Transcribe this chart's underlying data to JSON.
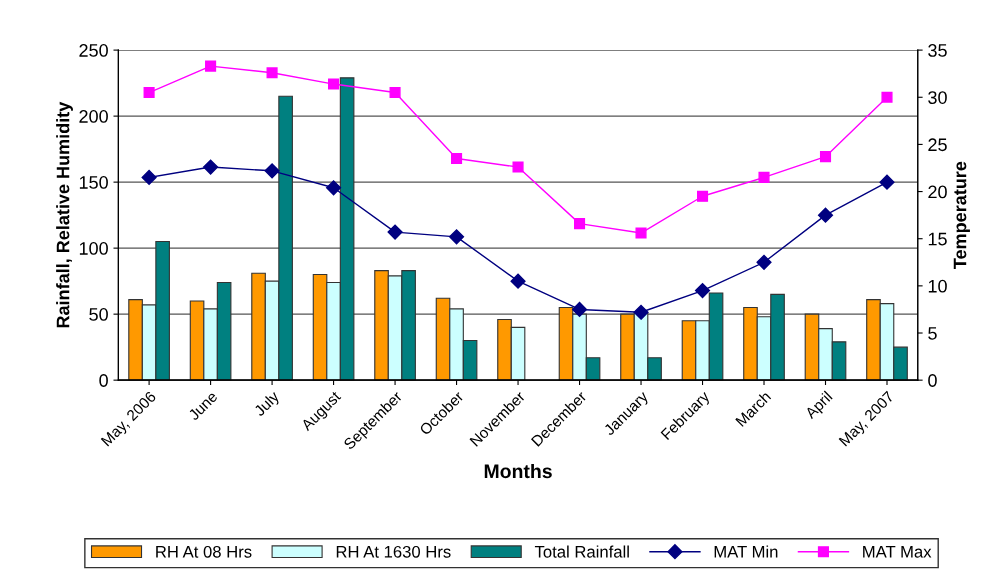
{
  "chart_data": {
    "type": "bar",
    "xlabel": "Months",
    "ylabel": "Rainfall, Relative Humidity",
    "y2label": "Temperature",
    "categories": [
      "May, 2006",
      "June",
      "July",
      "August",
      "September",
      "October",
      "November",
      "December",
      "January",
      "February",
      "March",
      "April",
      "May, 2007"
    ],
    "series": [
      {
        "name": "RH At 08 Hrs",
        "color": "#ff9900",
        "values": [
          61,
          60,
          81,
          80,
          83,
          62,
          46,
          55,
          50,
          45,
          55,
          50,
          61
        ]
      },
      {
        "name": "RH At 1630 Hrs",
        "color": "#ccffff",
        "values": [
          57,
          54,
          75,
          74,
          79,
          54,
          40,
          50,
          51,
          45,
          48,
          39,
          58
        ]
      },
      {
        "name": "Total Rainfall",
        "color": "#008080",
        "values": [
          105,
          74,
          215,
          229,
          83,
          30,
          null,
          17,
          17,
          66,
          65,
          29,
          25
        ]
      },
      {
        "name": "MAT Min",
        "type": "line",
        "axis": "y2",
        "marker": "diamond",
        "color": "#000080",
        "values": [
          21.5,
          22.6,
          22.2,
          20.4,
          15.7,
          15.2,
          10.5,
          7.5,
          7.2,
          9.5,
          12.5,
          17.5,
          21
        ]
      },
      {
        "name": "MAT Max",
        "type": "line",
        "axis": "y2",
        "marker": "square",
        "color": "#ff00ff",
        "values": [
          30.5,
          33.3,
          32.6,
          31.4,
          30.5,
          23.5,
          22.6,
          16.6,
          15.6,
          19.5,
          21.5,
          23.7,
          30
        ]
      }
    ],
    "ylim": [
      0,
      250
    ],
    "yticks": [
      0,
      50,
      100,
      150,
      200,
      250
    ],
    "y2lim": [
      0,
      35
    ],
    "y2ticks": [
      0,
      5,
      10,
      15,
      20,
      25,
      30,
      35
    ],
    "grid": "y",
    "legend": "bottom"
  }
}
